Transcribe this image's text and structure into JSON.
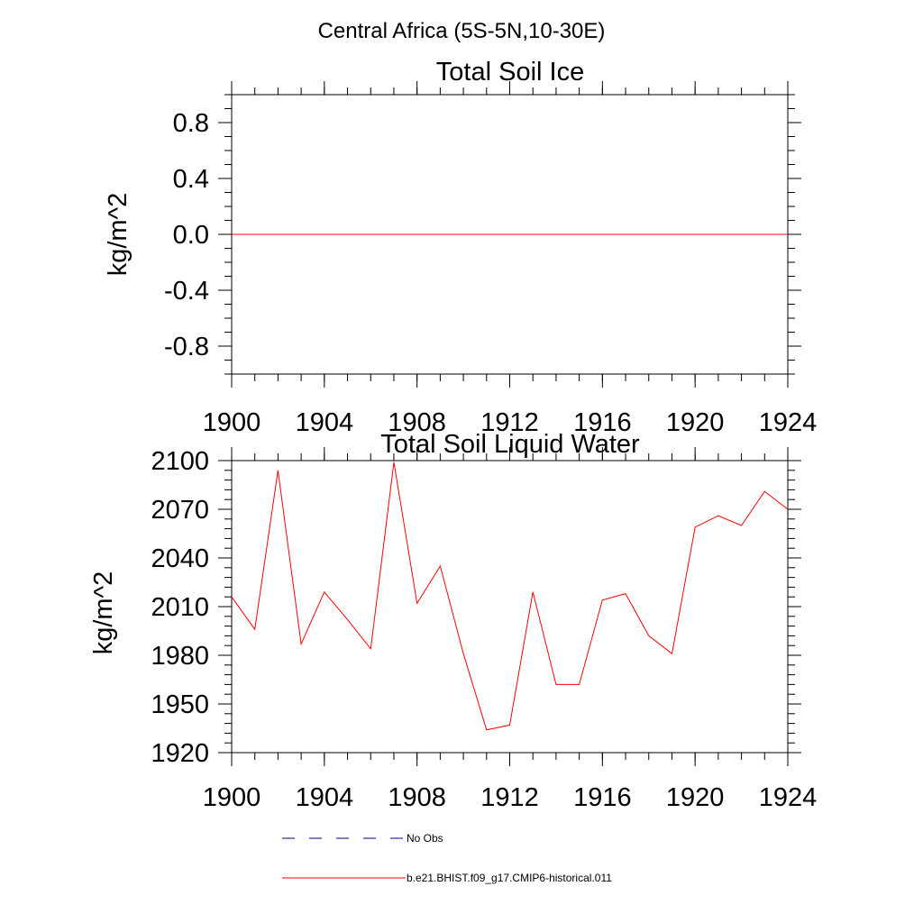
{
  "figure": {
    "suptitle": "Central Africa (5S-5N,10-30E)"
  },
  "colors": {
    "model": "#ff0000",
    "obs": "#000080",
    "axis": "#000000"
  },
  "legend": {
    "items": [
      {
        "label": "No Obs",
        "style": "dashed",
        "color": "#000080"
      },
      {
        "label": "b.e21.BHIST.f09_g17.CMIP6-historical.011",
        "style": "solid",
        "color": "#ff0000"
      }
    ]
  },
  "chart_data": [
    {
      "type": "line",
      "title": "Total Soil Ice",
      "xlabel": "",
      "ylabel": "kg/m^2",
      "xlim": [
        1900,
        1924
      ],
      "ylim": [
        -1.0,
        1.0
      ],
      "xticks": [
        1900,
        1904,
        1908,
        1912,
        1916,
        1920,
        1924
      ],
      "xtick_labels": [
        "1900",
        "1904",
        "1908",
        "1912",
        "1916",
        "1920",
        "1924"
      ],
      "yticks": [
        0.8,
        0.4,
        0.0,
        -0.4,
        -0.8
      ],
      "ytick_labels": [
        "0.8",
        "0.4",
        "0.0",
        "-0.4",
        "-0.8"
      ],
      "yminor_step": 0.1,
      "xminor_step": 1,
      "grid": false,
      "series": [
        {
          "name": "b.e21.BHIST.f09_g17.CMIP6-historical.011",
          "color": "#ff0000",
          "x": [
            1900,
            1901,
            1902,
            1903,
            1904,
            1905,
            1906,
            1907,
            1908,
            1909,
            1910,
            1911,
            1912,
            1913,
            1914,
            1915,
            1916,
            1917,
            1918,
            1919,
            1920,
            1921,
            1922,
            1923,
            1924
          ],
          "y": [
            0,
            0,
            0,
            0,
            0,
            0,
            0,
            0,
            0,
            0,
            0,
            0,
            0,
            0,
            0,
            0,
            0,
            0,
            0,
            0,
            0,
            0,
            0,
            0,
            0
          ]
        }
      ]
    },
    {
      "type": "line",
      "title": "Total Soil Liquid Water",
      "xlabel": "",
      "ylabel": "kg/m^2",
      "xlim": [
        1900,
        1924
      ],
      "ylim": [
        1920,
        2100
      ],
      "xticks": [
        1900,
        1904,
        1908,
        1912,
        1916,
        1920,
        1924
      ],
      "xtick_labels": [
        "1900",
        "1904",
        "1908",
        "1912",
        "1916",
        "1920",
        "1924"
      ],
      "yticks": [
        2100,
        2070,
        2040,
        2010,
        1980,
        1950,
        1920
      ],
      "ytick_labels": [
        "2100",
        "2070",
        "2040",
        "2010",
        "1980",
        "1950",
        "1920"
      ],
      "yminor_step": 6,
      "xminor_step": 1,
      "grid": false,
      "series": [
        {
          "name": "b.e21.BHIST.f09_g17.CMIP6-historical.011",
          "color": "#ff0000",
          "x": [
            1900,
            1901,
            1902,
            1903,
            1904,
            1905,
            1906,
            1907,
            1908,
            1909,
            1910,
            1911,
            1912,
            1913,
            1914,
            1915,
            1916,
            1917,
            1918,
            1919,
            1920,
            1921,
            1922,
            1923,
            1924
          ],
          "y": [
            2016,
            1996,
            2094,
            1987,
            2019,
            2002,
            1984,
            2099,
            2012,
            2035,
            1981,
            1934,
            1937,
            2019,
            1962,
            1962,
            2014,
            2018,
            1992,
            1981,
            2059,
            2066,
            2060,
            2081,
            2070
          ]
        }
      ]
    }
  ]
}
